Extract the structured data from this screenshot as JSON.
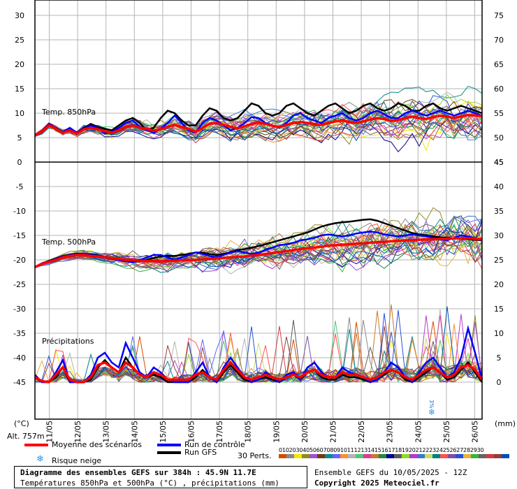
{
  "chart_data": {
    "type": "line",
    "title": "Diagramme des ensembles GEFS sur 384h : 45.9N 11.7E",
    "subtitle": "Températures 850hPa et 500hPa (°C) , précipitations (mm)",
    "run_info": "Ensemble GEFS du 10/05/2025 - 12Z",
    "copyright": "Copyright 2025 Meteociel.fr",
    "altitude": "Alt. 757m",
    "left_unit": "(°C)",
    "right_unit": "(mm)",
    "x_dates": [
      "11/05",
      "12/05",
      "13/05",
      "14/05",
      "15/05",
      "16/05",
      "17/05",
      "18/05",
      "19/05",
      "20/05",
      "21/05",
      "22/05",
      "23/05",
      "24/05",
      "25/05",
      "26/05"
    ],
    "x_range_hours": [
      0,
      384
    ],
    "upper_left_ticks": [
      "30",
      "25",
      "20",
      "15",
      "10",
      "5",
      "0"
    ],
    "upper_right_ticks": [
      "75",
      "70",
      "65",
      "60",
      "55",
      "50",
      "45"
    ],
    "lower_left_ticks": [
      "-5",
      "-10",
      "-15",
      "-20",
      "-25",
      "-30",
      "-35",
      "-40",
      "-45"
    ],
    "lower_right_ticks": [
      "40",
      "35",
      "30",
      "25",
      "20",
      "15",
      "10",
      "5",
      "0"
    ],
    "panels": [
      {
        "name": "Temp. 850hPa",
        "unit": "°C",
        "ylim": [
          0,
          30
        ],
        "mean_series": [
          5.5,
          6.2,
          7.5,
          6.8,
          6.0,
          6.5,
          5.8,
          6.7,
          7.0,
          6.7,
          6.3,
          6.0,
          6.5,
          7.2,
          7.5,
          7.0,
          6.8,
          6.4,
          6.7,
          7.2,
          7.6,
          7.2,
          6.8,
          6.2,
          7.0,
          7.8,
          8.0,
          7.6,
          7.2,
          6.9,
          7.3,
          7.8,
          8.1,
          7.8,
          7.4,
          7.2,
          7.6,
          8.0,
          8.2,
          8.0,
          7.8,
          7.6,
          8.0,
          8.3,
          8.5,
          8.2,
          8.0,
          8.3,
          8.7,
          9.0,
          8.8,
          8.4,
          8.6,
          9.0,
          9.3,
          9.0,
          8.8,
          9.2,
          9.5,
          9.3,
          9.0,
          9.3,
          9.6,
          9.5,
          9.4
        ],
        "control_series": [
          5.5,
          6.3,
          7.8,
          7.0,
          6.2,
          7.0,
          6.0,
          6.8,
          7.5,
          7.0,
          5.8,
          6.2,
          7.0,
          8.0,
          8.5,
          7.2,
          6.5,
          6.0,
          6.8,
          8.0,
          9.5,
          8.0,
          6.5,
          6.0,
          8.0,
          9.0,
          8.5,
          7.5,
          6.5,
          7.0,
          8.0,
          9.2,
          9.0,
          8.0,
          7.5,
          7.0,
          8.0,
          9.5,
          10.0,
          9.0,
          8.5,
          8.0,
          9.0,
          9.5,
          10.0,
          9.0,
          8.5,
          9.0,
          10.0,
          10.5,
          9.8,
          9.0,
          9.0,
          10.0,
          10.5,
          10.0,
          9.5,
          10.0,
          10.5,
          10.0,
          9.5,
          10.0,
          10.5,
          10.0,
          9.5
        ],
        "gfs_series": [
          5.5,
          6.3,
          7.8,
          7.0,
          6.2,
          6.8,
          6.0,
          7.0,
          7.8,
          7.2,
          6.8,
          6.5,
          7.5,
          8.5,
          9.0,
          8.0,
          6.5,
          7.0,
          9.0,
          10.5,
          10.0,
          8.5,
          7.5,
          7.5,
          9.5,
          11.0,
          10.5,
          9.0,
          8.5,
          9.0,
          10.5,
          12.0,
          11.5,
          10.0,
          9.5,
          10.0,
          11.5,
          12.0,
          11.0,
          10.0,
          9.5,
          10.5,
          11.5,
          12.0,
          11.0,
          10.0,
          10.5,
          11.5,
          12.0,
          11.0,
          10.5,
          11.0,
          12.0,
          11.5,
          10.5,
          10.5,
          11.5,
          12.0,
          11.0,
          10.5,
          11.0,
          11.5,
          11.0,
          10.5,
          10.0
        ]
      },
      {
        "name": "Temp. 500hPa",
        "unit": "°C",
        "ylim": [
          -45,
          0
        ],
        "mean_series": [
          -21.5,
          -20.8,
          -20.4,
          -20.0,
          -19.5,
          -19.2,
          -19.0,
          -19.0,
          -19.2,
          -19.3,
          -19.5,
          -19.6,
          -19.8,
          -20.0,
          -20.0,
          -20.2,
          -20.2,
          -20.2,
          -20.3,
          -20.2,
          -20.2,
          -20.1,
          -20.0,
          -20.0,
          -19.9,
          -19.8,
          -19.7,
          -19.6,
          -19.5,
          -19.4,
          -19.3,
          -19.1,
          -19.0,
          -18.8,
          -18.6,
          -18.4,
          -18.2,
          -18.0,
          -17.8,
          -17.6,
          -17.5,
          -17.3,
          -17.1,
          -17.0,
          -16.9,
          -16.8,
          -16.7,
          -16.6,
          -16.5,
          -16.4,
          -16.3,
          -16.2,
          -16.1,
          -16.0,
          -16.0,
          -15.9,
          -15.8,
          -15.8,
          -15.7,
          -15.7,
          -15.6,
          -15.6,
          -15.6,
          -15.7,
          -15.8
        ],
        "control_series": [
          -21.5,
          -20.7,
          -20.3,
          -19.8,
          -19.3,
          -19.0,
          -18.8,
          -18.9,
          -19.0,
          -19.2,
          -19.6,
          -19.8,
          -20.0,
          -20.3,
          -20.5,
          -20.0,
          -19.5,
          -19.0,
          -19.0,
          -19.5,
          -20.0,
          -19.5,
          -19.0,
          -18.5,
          -18.8,
          -19.2,
          -19.5,
          -19.0,
          -18.5,
          -18.2,
          -18.5,
          -18.8,
          -18.5,
          -18.0,
          -17.5,
          -17.0,
          -16.8,
          -16.5,
          -16.0,
          -15.8,
          -15.5,
          -15.0,
          -14.8,
          -15.0,
          -15.2,
          -15.0,
          -14.6,
          -14.4,
          -14.2,
          -14.4,
          -14.8,
          -15.0,
          -15.2,
          -15.0,
          -14.8,
          -15.0,
          -15.2,
          -15.5,
          -15.8,
          -16.0,
          -15.5,
          -15.0,
          -15.2,
          -15.6,
          -16.0
        ],
        "gfs_series": [
          -21.5,
          -20.7,
          -20.2,
          -19.7,
          -19.2,
          -18.9,
          -18.7,
          -18.8,
          -18.9,
          -19.1,
          -19.4,
          -19.7,
          -20.0,
          -20.3,
          -20.4,
          -20.3,
          -20.0,
          -19.6,
          -19.3,
          -19.2,
          -19.2,
          -19.0,
          -18.8,
          -18.5,
          -18.5,
          -18.8,
          -19.0,
          -18.8,
          -18.4,
          -18.0,
          -17.8,
          -17.5,
          -17.2,
          -16.8,
          -16.4,
          -16.0,
          -15.6,
          -15.2,
          -14.8,
          -14.4,
          -13.8,
          -13.2,
          -12.8,
          -12.5,
          -12.3,
          -12.2,
          -12.0,
          -11.8,
          -11.7,
          -12.0,
          -12.5,
          -13.0,
          -13.5,
          -14.0,
          -14.5,
          -14.8,
          -15.0,
          -15.2,
          -15.4,
          -15.5,
          -15.6,
          -15.7,
          -15.8,
          -15.9,
          -16.0
        ]
      },
      {
        "name": "Précipitations",
        "unit": "mm",
        "ylim": [
          0,
          40
        ],
        "mean_series": [
          1.0,
          0.2,
          0.0,
          1.5,
          3.0,
          0.5,
          0.0,
          0.0,
          1.0,
          3.5,
          4.0,
          3.0,
          2.0,
          4.0,
          3.0,
          1.5,
          1.0,
          2.0,
          1.5,
          0.5,
          0.5,
          0.5,
          0.5,
          1.5,
          2.0,
          1.0,
          0.5,
          2.5,
          4.0,
          2.5,
          1.0,
          0.5,
          1.0,
          1.5,
          1.0,
          0.5,
          1.0,
          1.5,
          1.0,
          2.0,
          2.5,
          1.5,
          1.0,
          1.0,
          2.0,
          1.5,
          1.5,
          1.0,
          0.5,
          1.0,
          2.0,
          2.5,
          2.0,
          1.0,
          0.5,
          1.5,
          2.5,
          3.0,
          2.0,
          1.0,
          1.5,
          3.0,
          3.5,
          2.5,
          0.5
        ],
        "control_series": [
          1.5,
          0.0,
          0.0,
          2.0,
          4.5,
          0.0,
          0.0,
          0.0,
          1.5,
          5.0,
          6.0,
          4.0,
          3.0,
          8.0,
          5.0,
          2.0,
          1.0,
          3.0,
          2.0,
          0.5,
          0.0,
          0.0,
          0.0,
          2.0,
          4.0,
          1.0,
          0.0,
          3.0,
          5.0,
          3.0,
          1.0,
          0.0,
          0.5,
          2.0,
          1.0,
          0.0,
          1.5,
          2.0,
          0.5,
          3.0,
          4.0,
          2.0,
          1.0,
          1.0,
          3.0,
          2.0,
          1.5,
          1.0,
          0.0,
          0.5,
          2.0,
          4.0,
          3.0,
          1.0,
          0.0,
          2.0,
          4.0,
          5.0,
          3.0,
          1.0,
          2.0,
          5.0,
          11.0,
          6.0,
          0.5
        ],
        "gfs_series": [
          1.0,
          0.0,
          0.0,
          1.0,
          3.0,
          0.0,
          0.0,
          0.0,
          0.5,
          3.0,
          4.5,
          3.0,
          2.0,
          5.0,
          3.0,
          1.5,
          1.0,
          1.5,
          1.0,
          0.0,
          0.0,
          0.0,
          0.0,
          1.0,
          2.5,
          1.0,
          0.0,
          2.0,
          3.5,
          2.0,
          0.5,
          0.0,
          0.5,
          1.0,
          0.5,
          0.0,
          1.0,
          1.5,
          0.5,
          2.0,
          2.5,
          1.0,
          0.5,
          0.5,
          1.5,
          1.0,
          1.0,
          0.5,
          0.0,
          0.5,
          1.5,
          2.5,
          2.0,
          0.5,
          0.0,
          1.0,
          2.0,
          3.0,
          2.0,
          0.5,
          1.0,
          2.5,
          4.0,
          2.0,
          0.0
        ]
      }
    ],
    "snow_risk": [
      {
        "label": "3%"
      }
    ],
    "legend": {
      "mean": "Moyenne des scénarios",
      "control": "Run de contrôle",
      "gfs": "Run GFS",
      "snow": "Risque neige",
      "perturbations": "30 Perts.",
      "perturbation_numbers": [
        "01",
        "02",
        "03",
        "04",
        "05",
        "06",
        "07",
        "08",
        "09",
        "10",
        "11",
        "12",
        "13",
        "14",
        "15",
        "16",
        "17",
        "18",
        "19",
        "20",
        "21",
        "22",
        "23",
        "24",
        "25",
        "26",
        "27",
        "28",
        "29",
        "30"
      ]
    },
    "colors": {
      "mean": "#ff0000",
      "control": "#0000ff",
      "gfs": "#000000",
      "grid": "#b4b4b4",
      "perturbations": [
        "#d64b00",
        "#8a8a8a",
        "#f5e600",
        "#8c8c1e",
        "#a050c8",
        "#6e3c14",
        "#0a8c8c",
        "#6464ff",
        "#ff8c32",
        "#b4b4b4",
        "#50c878",
        "#dc3c96",
        "#c87832",
        "#1e8c3c",
        "#000096",
        "#5a5a5a",
        "#8cdc28",
        "#b43cc8",
        "#3c78c8",
        "#c8dc64",
        "#008080",
        "#ff5050",
        "#8050a0",
        "#2850d2",
        "#e6b43c",
        "#3cb43c",
        "#646464",
        "#d23c3c",
        "#963c3c",
        "#0050b4"
      ]
    }
  }
}
